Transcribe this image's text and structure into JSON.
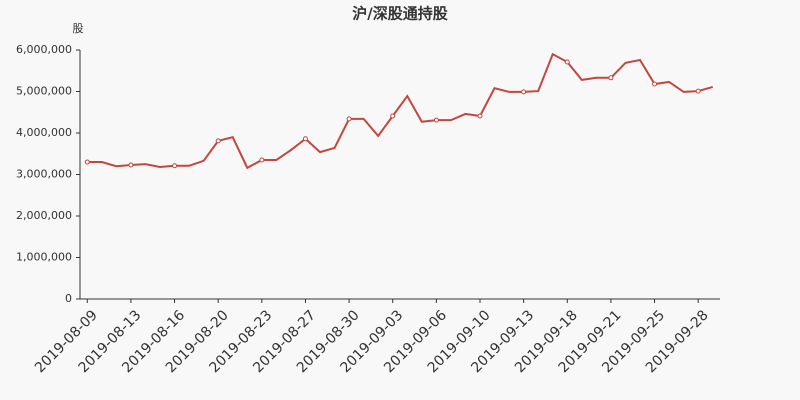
{
  "chart_data": {
    "type": "line",
    "title": "沪/深股通持股",
    "y_label": "股",
    "categories": [
      "2019-08-09",
      null,
      null,
      "2019-08-13",
      null,
      null,
      "2019-08-16",
      null,
      null,
      "2019-08-20",
      null,
      null,
      "2019-08-23",
      null,
      null,
      "2019-08-27",
      null,
      null,
      "2019-08-30",
      null,
      null,
      "2019-09-03",
      null,
      null,
      "2019-09-06",
      null,
      null,
      "2019-09-10",
      null,
      null,
      "2019-09-13",
      null,
      null,
      "2019-09-18",
      null,
      null,
      "2019-09-21",
      null,
      null,
      "2019-09-25",
      null,
      null,
      "2019-09-28",
      null
    ],
    "series": [
      {
        "name": "沪/深股通持股",
        "color": "#c4463f",
        "values": [
          3300000,
          3300000,
          3200000,
          3230000,
          3250000,
          3180000,
          3210000,
          3210000,
          3330000,
          3810000,
          3900000,
          3160000,
          3350000,
          3350000,
          3590000,
          3860000,
          3540000,
          3640000,
          4340000,
          4340000,
          3930000,
          4410000,
          4890000,
          4270000,
          4310000,
          4310000,
          4460000,
          4410000,
          5080000,
          4990000,
          4990000,
          5010000,
          5900000,
          5710000,
          5280000,
          5330000,
          5330000,
          5690000,
          5760000,
          5180000,
          5230000,
          4990000,
          5010000,
          5110000
        ]
      }
    ],
    "ylim": [
      0,
      6000000
    ],
    "yticks": [
      0,
      {
        "value": 1000000,
        "label": "1,000,000"
      },
      {
        "value": 2000000,
        "label": "2,000,000"
      },
      {
        "value": 3000000,
        "label": "3,000,000"
      },
      {
        "value": 4000000,
        "label": "4,000,000"
      },
      {
        "value": 5000000,
        "label": "5,000,000"
      },
      {
        "value": 6000000,
        "label": "6,000,000"
      }
    ],
    "grid": false
  }
}
